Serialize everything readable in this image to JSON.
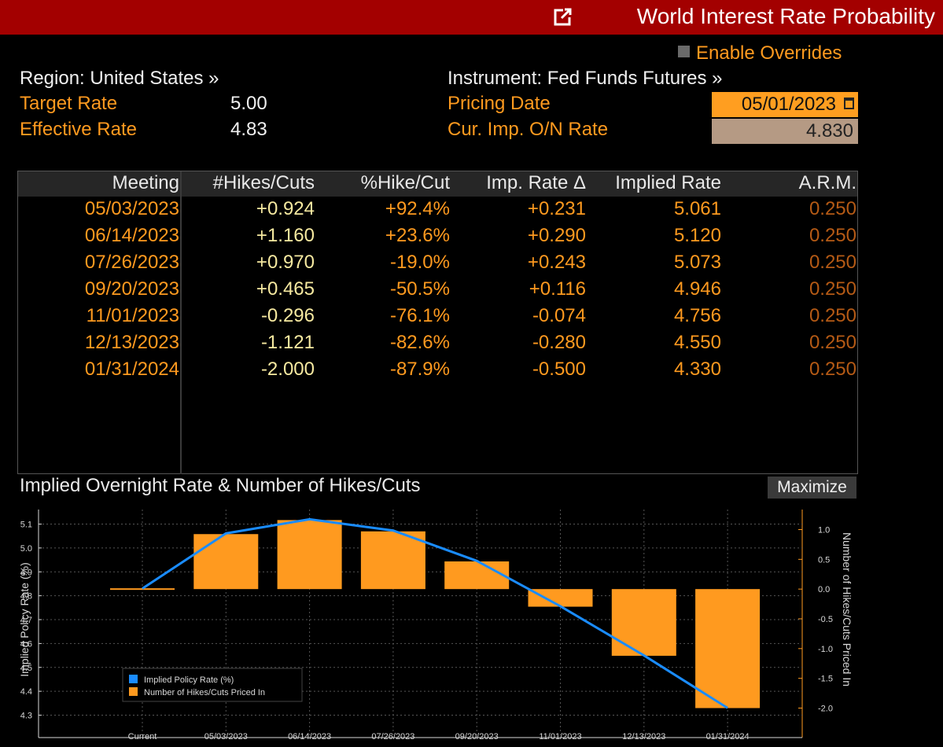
{
  "window": {
    "title": "World Interest Rate Probability",
    "enable_overrides_label": "Enable Overrides"
  },
  "info": {
    "region": "Region: United States »",
    "instrument": "Instrument: Fed Funds Futures »",
    "target_rate_label": "Target Rate",
    "target_rate_value": "5.00",
    "effective_rate_label": "Effective Rate",
    "effective_rate_value": "4.83",
    "pricing_date_label": "Pricing Date",
    "pricing_date_value": "05/01/2023",
    "cur_imp_label": "Cur. Imp. O/N Rate",
    "cur_imp_value": "4.830"
  },
  "table": {
    "columns": [
      "Meeting",
      "#Hikes/Cuts",
      "%Hike/Cut",
      "Imp. Rate Δ",
      "Implied Rate",
      "A.R.M."
    ],
    "rows": [
      [
        "05/03/2023",
        "+0.924",
        "+92.4%",
        "+0.231",
        "5.061",
        "0.250"
      ],
      [
        "06/14/2023",
        "+1.160",
        "+23.6%",
        "+0.290",
        "5.120",
        "0.250"
      ],
      [
        "07/26/2023",
        "+0.970",
        "-19.0%",
        "+0.243",
        "5.073",
        "0.250"
      ],
      [
        "09/20/2023",
        "+0.465",
        "-50.5%",
        "+0.116",
        "4.946",
        "0.250"
      ],
      [
        "11/01/2023",
        "-0.296",
        "-76.1%",
        "-0.074",
        "4.756",
        "0.250"
      ],
      [
        "12/13/2023",
        "-1.121",
        "-82.6%",
        "-0.280",
        "4.550",
        "0.250"
      ],
      [
        "01/31/2024",
        "-2.000",
        "-87.9%",
        "-0.500",
        "4.330",
        "0.250"
      ]
    ]
  },
  "chart_section": {
    "title": "Implied Overnight Rate & Number of Hikes/Cuts",
    "maximize_label": "Maximize"
  },
  "chart_data": {
    "type": "bar",
    "categories": [
      "Current",
      "05/03/2023",
      "06/14/2023",
      "07/26/2023",
      "09/20/2023",
      "11/01/2023",
      "12/13/2023",
      "01/31/2024"
    ],
    "series": [
      {
        "name": "Implied Policy Rate (%)",
        "type": "line",
        "axis": "left",
        "color": "#1a8cff",
        "values": [
          4.83,
          5.061,
          5.12,
          5.073,
          4.946,
          4.756,
          4.55,
          4.33
        ]
      },
      {
        "name": "Number of Hikes/Cuts Priced In",
        "type": "bar",
        "axis": "right",
        "color": "#ff9a1f",
        "values": [
          0,
          0.924,
          1.16,
          0.97,
          0.465,
          -0.296,
          -1.121,
          -2.0
        ]
      }
    ],
    "ylabel": "Implied Policy Rate (%)",
    "y2label": "Number of Hikes/Cuts Priced In",
    "ylim": [
      4.3,
      5.1
    ],
    "y2lim": [
      -2.0,
      1.0
    ],
    "yticks": [
      "5.1",
      "5.0",
      "4.9",
      "4.8",
      "4.7",
      "4.6",
      "4.5",
      "4.4",
      "4.3"
    ],
    "y2ticks": [
      "1.0",
      "0.5",
      "0.0",
      "-0.5",
      "-1.0",
      "-1.5",
      "-2.0"
    ],
    "grid": true,
    "legend": "bottom-left"
  }
}
